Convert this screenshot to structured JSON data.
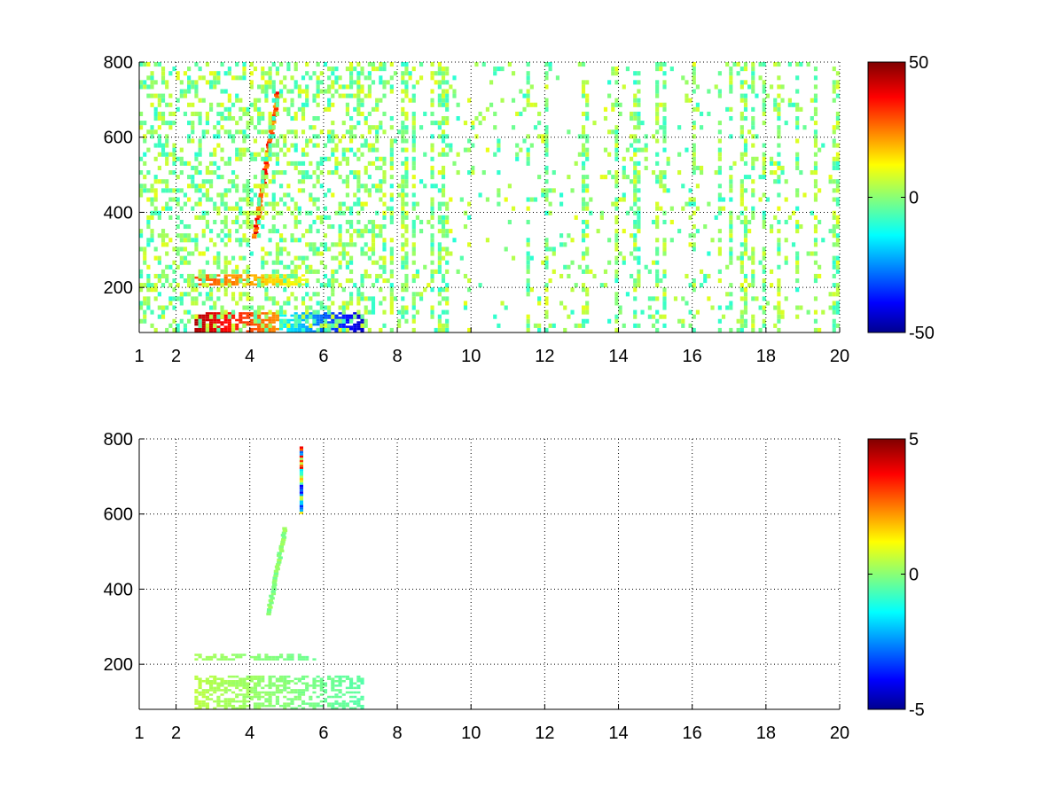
{
  "colormap": "jet",
  "colors": {
    "jet_stops": [
      "#00008f",
      "#0000ff",
      "#00ffff",
      "#ffff00",
      "#ff0000",
      "#800000"
    ],
    "grid": "#000000",
    "background": "#ffffff"
  },
  "chart_data": [
    {
      "type": "heatmap",
      "title": "",
      "xlabel": "",
      "ylabel": "",
      "xlim": [
        1,
        20
      ],
      "ylim": [
        80,
        800
      ],
      "xticks": [
        1,
        2,
        4,
        6,
        8,
        10,
        12,
        14,
        16,
        18,
        20
      ],
      "xtick_labels": [
        "1",
        "2",
        "4",
        "6",
        "8",
        "10",
        "12",
        "14",
        "16",
        "18",
        "20"
      ],
      "yticks": [
        200,
        400,
        600,
        800
      ],
      "ytick_labels": [
        "200",
        "400",
        "600",
        "800"
      ],
      "grid": true,
      "grid_style": "dotted",
      "colorbar": {
        "min": -50,
        "max": 50,
        "tick_labels": [
          "50",
          "0",
          "-50"
        ]
      },
      "features": [
        {
          "kind": "band",
          "x": [
            2.5,
            7.0
          ],
          "y": [
            80,
            130
          ],
          "value_range": [
            -45,
            45
          ]
        },
        {
          "kind": "band",
          "x": [
            2.5,
            5.5
          ],
          "y": [
            205,
            230
          ],
          "value_range": [
            10,
            30
          ]
        },
        {
          "kind": "curve",
          "x": [
            4.0,
            4.7
          ],
          "y": [
            330,
            720
          ],
          "value_range": [
            20,
            40
          ]
        },
        {
          "kind": "scatter-columns",
          "x": [
            1,
            20
          ],
          "y": [
            80,
            800
          ],
          "value_range": [
            -10,
            10
          ]
        }
      ]
    },
    {
      "type": "heatmap",
      "title": "",
      "xlabel": "",
      "ylabel": "",
      "xlim": [
        1,
        20
      ],
      "ylim": [
        80,
        800
      ],
      "xticks": [
        1,
        2,
        4,
        6,
        8,
        10,
        12,
        14,
        16,
        18,
        20
      ],
      "xtick_labels": [
        "1",
        "2",
        "4",
        "6",
        "8",
        "10",
        "12",
        "14",
        "16",
        "18",
        "20"
      ],
      "yticks": [
        200,
        400,
        600,
        800
      ],
      "ytick_labels": [
        "200",
        "400",
        "600",
        "800"
      ],
      "grid": true,
      "grid_style": "dotted",
      "colorbar": {
        "min": -5,
        "max": 5,
        "tick_labels": [
          "5",
          "0",
          "-5"
        ]
      },
      "features": [
        {
          "kind": "band",
          "x": [
            2.5,
            7.0
          ],
          "y": [
            80,
            170
          ],
          "value_range": [
            -0.5,
            0.5
          ]
        },
        {
          "kind": "band",
          "x": [
            2.5,
            5.7
          ],
          "y": [
            210,
            225
          ],
          "value_range": [
            -0.3,
            0.3
          ]
        },
        {
          "kind": "curve",
          "x": [
            4.4,
            4.9
          ],
          "y": [
            330,
            560
          ],
          "value_range": [
            -0.3,
            0.3
          ]
        },
        {
          "kind": "column",
          "x": [
            5.35,
            5.4
          ],
          "y": [
            600,
            780
          ],
          "value_range": [
            -4,
            4
          ]
        }
      ]
    }
  ]
}
